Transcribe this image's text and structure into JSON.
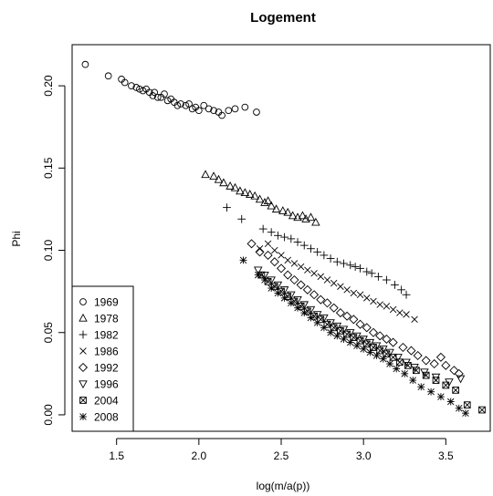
{
  "chart_data": {
    "type": "scatter",
    "title": "Logement",
    "xlabel": "log(m/a(p))",
    "ylabel": "Phi",
    "xlim": [
      1.23,
      3.77
    ],
    "ylim": [
      -0.01,
      0.225
    ],
    "x_ticks": [
      "1.5",
      "2.0",
      "2.5",
      "3.0",
      "3.5"
    ],
    "x_tick_values": [
      1.5,
      2.0,
      2.5,
      3.0,
      3.5
    ],
    "y_ticks": [
      "0.00",
      "0.05",
      "0.10",
      "0.15",
      "0.20"
    ],
    "y_tick_values": [
      0.0,
      0.05,
      0.1,
      0.15,
      0.2
    ],
    "grid": false,
    "legend_position": "bottom-left",
    "series": [
      {
        "name": "1969",
        "marker": "circle",
        "points": [
          [
            1.31,
            0.213
          ],
          [
            1.45,
            0.206
          ],
          [
            1.53,
            0.204
          ],
          [
            1.55,
            0.202
          ],
          [
            1.59,
            0.2
          ],
          [
            1.62,
            0.199
          ],
          [
            1.64,
            0.198
          ],
          [
            1.66,
            0.197
          ],
          [
            1.68,
            0.198
          ],
          [
            1.7,
            0.196
          ],
          [
            1.72,
            0.194
          ],
          [
            1.73,
            0.196
          ],
          [
            1.75,
            0.193
          ],
          [
            1.77,
            0.193
          ],
          [
            1.79,
            0.195
          ],
          [
            1.81,
            0.191
          ],
          [
            1.83,
            0.192
          ],
          [
            1.85,
            0.19
          ],
          [
            1.87,
            0.188
          ],
          [
            1.89,
            0.189
          ],
          [
            1.92,
            0.188
          ],
          [
            1.94,
            0.189
          ],
          [
            1.96,
            0.186
          ],
          [
            1.98,
            0.187
          ],
          [
            2.0,
            0.185
          ],
          [
            2.03,
            0.188
          ],
          [
            2.06,
            0.186
          ],
          [
            2.09,
            0.185
          ],
          [
            2.12,
            0.184
          ],
          [
            2.14,
            0.182
          ],
          [
            2.18,
            0.185
          ],
          [
            2.22,
            0.186
          ],
          [
            2.28,
            0.187
          ],
          [
            2.35,
            0.184
          ]
        ]
      },
      {
        "name": "1978",
        "marker": "triangle-up",
        "points": [
          [
            2.04,
            0.146
          ],
          [
            2.09,
            0.145
          ],
          [
            2.12,
            0.143
          ],
          [
            2.15,
            0.141
          ],
          [
            2.19,
            0.139
          ],
          [
            2.22,
            0.138
          ],
          [
            2.25,
            0.136
          ],
          [
            2.28,
            0.135
          ],
          [
            2.31,
            0.134
          ],
          [
            2.34,
            0.133
          ],
          [
            2.37,
            0.131
          ],
          [
            2.4,
            0.129
          ],
          [
            2.42,
            0.13
          ],
          [
            2.44,
            0.127
          ],
          [
            2.47,
            0.125
          ],
          [
            2.51,
            0.124
          ],
          [
            2.54,
            0.123
          ],
          [
            2.57,
            0.121
          ],
          [
            2.6,
            0.12
          ],
          [
            2.63,
            0.121
          ],
          [
            2.65,
            0.119
          ],
          [
            2.68,
            0.12
          ],
          [
            2.71,
            0.117
          ]
        ]
      },
      {
        "name": "1982",
        "marker": "plus",
        "points": [
          [
            2.17,
            0.126
          ],
          [
            2.26,
            0.119
          ],
          [
            2.39,
            0.113
          ],
          [
            2.44,
            0.111
          ],
          [
            2.48,
            0.109
          ],
          [
            2.52,
            0.108
          ],
          [
            2.56,
            0.107
          ],
          [
            2.6,
            0.105
          ],
          [
            2.64,
            0.103
          ],
          [
            2.68,
            0.101
          ],
          [
            2.72,
            0.099
          ],
          [
            2.76,
            0.097
          ],
          [
            2.8,
            0.095
          ],
          [
            2.84,
            0.093
          ],
          [
            2.88,
            0.092
          ],
          [
            2.92,
            0.091
          ],
          [
            2.95,
            0.09
          ],
          [
            2.98,
            0.089
          ],
          [
            3.02,
            0.087
          ],
          [
            3.05,
            0.086
          ],
          [
            3.09,
            0.084
          ],
          [
            3.14,
            0.082
          ],
          [
            3.19,
            0.079
          ],
          [
            3.23,
            0.076
          ],
          [
            3.26,
            0.073
          ]
        ]
      },
      {
        "name": "1986",
        "marker": "x",
        "points": [
          [
            2.37,
            0.101
          ],
          [
            2.42,
            0.104
          ],
          [
            2.46,
            0.1
          ],
          [
            2.5,
            0.097
          ],
          [
            2.54,
            0.094
          ],
          [
            2.58,
            0.092
          ],
          [
            2.62,
            0.09
          ],
          [
            2.66,
            0.088
          ],
          [
            2.7,
            0.086
          ],
          [
            2.74,
            0.084
          ],
          [
            2.78,
            0.082
          ],
          [
            2.82,
            0.08
          ],
          [
            2.86,
            0.078
          ],
          [
            2.9,
            0.076
          ],
          [
            2.94,
            0.074
          ],
          [
            2.98,
            0.073
          ],
          [
            3.02,
            0.071
          ],
          [
            3.06,
            0.069
          ],
          [
            3.1,
            0.067
          ],
          [
            3.14,
            0.066
          ],
          [
            3.18,
            0.064
          ],
          [
            3.22,
            0.062
          ],
          [
            3.26,
            0.061
          ],
          [
            3.31,
            0.058
          ]
        ]
      },
      {
        "name": "1992",
        "marker": "diamond",
        "points": [
          [
            2.32,
            0.104
          ],
          [
            2.37,
            0.099
          ],
          [
            2.42,
            0.097
          ],
          [
            2.46,
            0.093
          ],
          [
            2.5,
            0.089
          ],
          [
            2.54,
            0.085
          ],
          [
            2.58,
            0.082
          ],
          [
            2.62,
            0.079
          ],
          [
            2.66,
            0.076
          ],
          [
            2.7,
            0.073
          ],
          [
            2.74,
            0.07
          ],
          [
            2.78,
            0.068
          ],
          [
            2.82,
            0.065
          ],
          [
            2.86,
            0.062
          ],
          [
            2.9,
            0.06
          ],
          [
            2.94,
            0.058
          ],
          [
            2.98,
            0.055
          ],
          [
            3.02,
            0.053
          ],
          [
            3.06,
            0.05
          ],
          [
            3.1,
            0.048
          ],
          [
            3.14,
            0.046
          ],
          [
            3.18,
            0.044
          ],
          [
            3.24,
            0.041
          ],
          [
            3.29,
            0.039
          ],
          [
            3.33,
            0.036
          ],
          [
            3.38,
            0.033
          ],
          [
            3.43,
            0.031
          ],
          [
            3.47,
            0.035
          ],
          [
            3.5,
            0.03
          ],
          [
            3.55,
            0.027
          ],
          [
            3.58,
            0.025
          ]
        ]
      },
      {
        "name": "1996",
        "marker": "triangle-down",
        "points": [
          [
            2.36,
            0.088
          ],
          [
            2.4,
            0.085
          ],
          [
            2.44,
            0.082
          ],
          [
            2.48,
            0.079
          ],
          [
            2.52,
            0.076
          ],
          [
            2.56,
            0.073
          ],
          [
            2.6,
            0.07
          ],
          [
            2.64,
            0.067
          ],
          [
            2.68,
            0.064
          ],
          [
            2.72,
            0.061
          ],
          [
            2.76,
            0.059
          ],
          [
            2.8,
            0.056
          ],
          [
            2.84,
            0.054
          ],
          [
            2.88,
            0.052
          ],
          [
            2.92,
            0.05
          ],
          [
            2.96,
            0.048
          ],
          [
            3.0,
            0.046
          ],
          [
            3.04,
            0.044
          ],
          [
            3.08,
            0.042
          ],
          [
            3.12,
            0.04
          ],
          [
            3.16,
            0.038
          ],
          [
            3.21,
            0.035
          ],
          [
            3.26,
            0.032
          ],
          [
            3.31,
            0.029
          ],
          [
            3.37,
            0.026
          ],
          [
            3.44,
            0.023
          ],
          [
            3.52,
            0.02
          ],
          [
            3.59,
            0.022
          ]
        ]
      },
      {
        "name": "2004",
        "marker": "square-x",
        "points": [
          [
            2.38,
            0.085
          ],
          [
            2.42,
            0.081
          ],
          [
            2.46,
            0.078
          ],
          [
            2.5,
            0.075
          ],
          [
            2.54,
            0.072
          ],
          [
            2.58,
            0.069
          ],
          [
            2.62,
            0.066
          ],
          [
            2.66,
            0.063
          ],
          [
            2.7,
            0.06
          ],
          [
            2.74,
            0.058
          ],
          [
            2.78,
            0.055
          ],
          [
            2.82,
            0.053
          ],
          [
            2.86,
            0.051
          ],
          [
            2.9,
            0.049
          ],
          [
            2.94,
            0.047
          ],
          [
            2.98,
            0.045
          ],
          [
            3.02,
            0.043
          ],
          [
            3.06,
            0.041
          ],
          [
            3.1,
            0.039
          ],
          [
            3.14,
            0.037
          ],
          [
            3.18,
            0.035
          ],
          [
            3.22,
            0.032
          ],
          [
            3.27,
            0.03
          ],
          [
            3.32,
            0.027
          ],
          [
            3.38,
            0.024
          ],
          [
            3.44,
            0.021
          ],
          [
            3.5,
            0.018
          ],
          [
            3.56,
            0.015
          ],
          [
            3.63,
            0.006
          ],
          [
            3.72,
            0.003
          ]
        ]
      },
      {
        "name": "2008",
        "marker": "asterisk",
        "points": [
          [
            2.27,
            0.094
          ],
          [
            2.36,
            0.085
          ],
          [
            2.4,
            0.082
          ],
          [
            2.44,
            0.077
          ],
          [
            2.48,
            0.074
          ],
          [
            2.52,
            0.071
          ],
          [
            2.56,
            0.068
          ],
          [
            2.6,
            0.065
          ],
          [
            2.64,
            0.062
          ],
          [
            2.68,
            0.059
          ],
          [
            2.72,
            0.056
          ],
          [
            2.76,
            0.053
          ],
          [
            2.8,
            0.05
          ],
          [
            2.84,
            0.048
          ],
          [
            2.88,
            0.046
          ],
          [
            2.92,
            0.044
          ],
          [
            2.96,
            0.042
          ],
          [
            3.0,
            0.04
          ],
          [
            3.04,
            0.038
          ],
          [
            3.08,
            0.036
          ],
          [
            3.12,
            0.034
          ],
          [
            3.16,
            0.031
          ],
          [
            3.2,
            0.028
          ],
          [
            3.25,
            0.025
          ],
          [
            3.3,
            0.021
          ],
          [
            3.35,
            0.017
          ],
          [
            3.41,
            0.014
          ],
          [
            3.47,
            0.011
          ],
          [
            3.53,
            0.008
          ],
          [
            3.58,
            0.004
          ],
          [
            3.62,
            0.001
          ]
        ]
      }
    ]
  }
}
